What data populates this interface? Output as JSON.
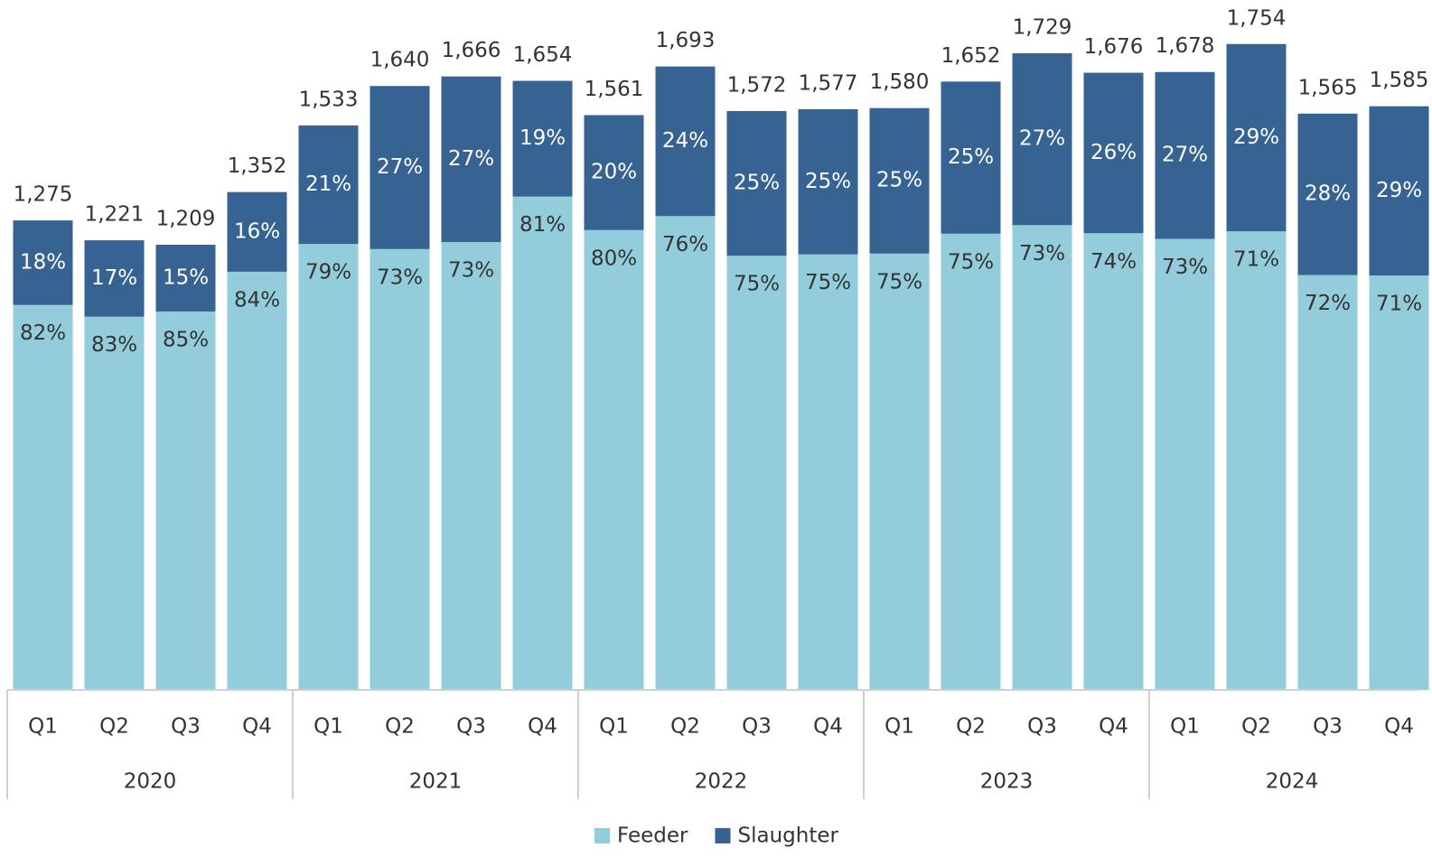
{
  "chart_data": {
    "type": "bar",
    "stacked": true,
    "categories": [
      "Q1",
      "Q2",
      "Q3",
      "Q4",
      "Q1",
      "Q2",
      "Q3",
      "Q4",
      "Q1",
      "Q2",
      "Q3",
      "Q4",
      "Q1",
      "Q2",
      "Q3",
      "Q4",
      "Q1",
      "Q2",
      "Q3",
      "Q4"
    ],
    "category_groups": [
      "2020",
      "2021",
      "2022",
      "2023",
      "2024"
    ],
    "series": [
      {
        "name": "Feeder",
        "color": "#93cddc",
        "values": [
          82,
          83,
          85,
          84,
          79,
          73,
          73,
          81,
          80,
          76,
          75,
          75,
          75,
          75,
          73,
          74,
          73,
          71,
          72,
          71
        ],
        "value_labels": [
          "82%",
          "83%",
          "85%",
          "84%",
          "79%",
          "73%",
          "73%",
          "81%",
          "80%",
          "76%",
          "75%",
          "75%",
          "75%",
          "75%",
          "73%",
          "74%",
          "73%",
          "71%",
          "72%",
          "71%"
        ]
      },
      {
        "name": "Slaughter",
        "color": "#366392",
        "values": [
          18,
          17,
          15,
          16,
          21,
          27,
          27,
          19,
          20,
          24,
          25,
          25,
          25,
          25,
          27,
          26,
          27,
          29,
          28,
          29
        ],
        "value_labels": [
          "18%",
          "17%",
          "15%",
          "16%",
          "21%",
          "27%",
          "27%",
          "19%",
          "20%",
          "24%",
          "25%",
          "25%",
          "25%",
          "25%",
          "27%",
          "26%",
          "27%",
          "29%",
          "28%",
          "29%"
        ]
      }
    ],
    "totals": {
      "values": [
        1275,
        1221,
        1209,
        1352,
        1533,
        1640,
        1666,
        1654,
        1561,
        1693,
        1572,
        1577,
        1580,
        1652,
        1729,
        1676,
        1678,
        1754,
        1565,
        1585
      ],
      "value_labels": [
        "1,275",
        "1,221",
        "1,209",
        "1,352",
        "1,533",
        "1,640",
        "1,666",
        "1,654",
        "1,561",
        "1,693",
        "1,572",
        "1,577",
        "1,580",
        "1,652",
        "1,729",
        "1,676",
        "1,678",
        "1,754",
        "1,565",
        "1,585"
      ]
    },
    "ylim": [
      0,
      1800
    ],
    "legend": "bottom"
  }
}
